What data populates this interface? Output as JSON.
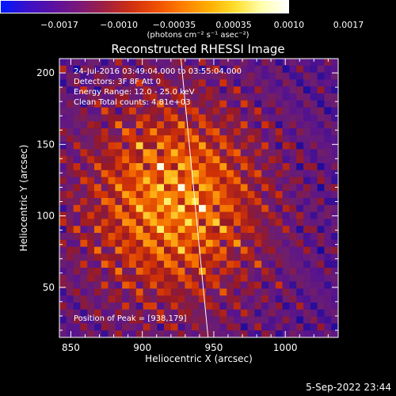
{
  "colorbar": {
    "colors": [
      "#0018ff",
      "#3a10c8",
      "#5a10a0",
      "#7a1878",
      "#a02040",
      "#d03010",
      "#f05000",
      "#ff8000",
      "#ffb000",
      "#ffe030",
      "#ffffb0",
      "#ffffff"
    ],
    "tick_labels": [
      "−0.0017",
      "−0.0010",
      "−0.00035",
      "0.00035",
      "0.0010",
      "0.0017"
    ],
    "tick_values": [
      -0.0017,
      -0.001,
      -0.00035,
      0.00035,
      0.001,
      0.0017
    ],
    "range": [
      -0.0017,
      0.0017
    ],
    "units": "(photons cm⁻² s⁻¹ asec⁻²)"
  },
  "chart_data": {
    "type": "heatmap",
    "title": "Reconstructed RHESSI Image",
    "xlabel": "Heliocentric X (arcsec)",
    "ylabel": "Heliocentric Y (arcsec)",
    "xlim": [
      842,
      1037
    ],
    "ylim": [
      15,
      210
    ],
    "x_ticks": [
      850,
      900,
      950,
      1000
    ],
    "y_ticks": [
      50,
      100,
      150,
      200
    ],
    "x_tick_labels": [
      "850",
      "900",
      "950",
      "1000"
    ],
    "y_tick_labels": [
      "50",
      "100",
      "150",
      "200"
    ],
    "peak": [
      938,
      179
    ],
    "limb_line": [
      [
        927,
        210
      ],
      [
        946,
        15
      ]
    ],
    "annotations": [
      "24-Jul-2016 03:49:04.000 to 03:55:04.000",
      "Detectors: 3F 8F Att 0",
      "Energy Range: 12.0 - 25.0 keV",
      "Clean     Total counts: 4.81e+03"
    ],
    "peak_label": "Position of Peak = [938,179]"
  },
  "datestamp": "5-Sep-2022 23:44"
}
